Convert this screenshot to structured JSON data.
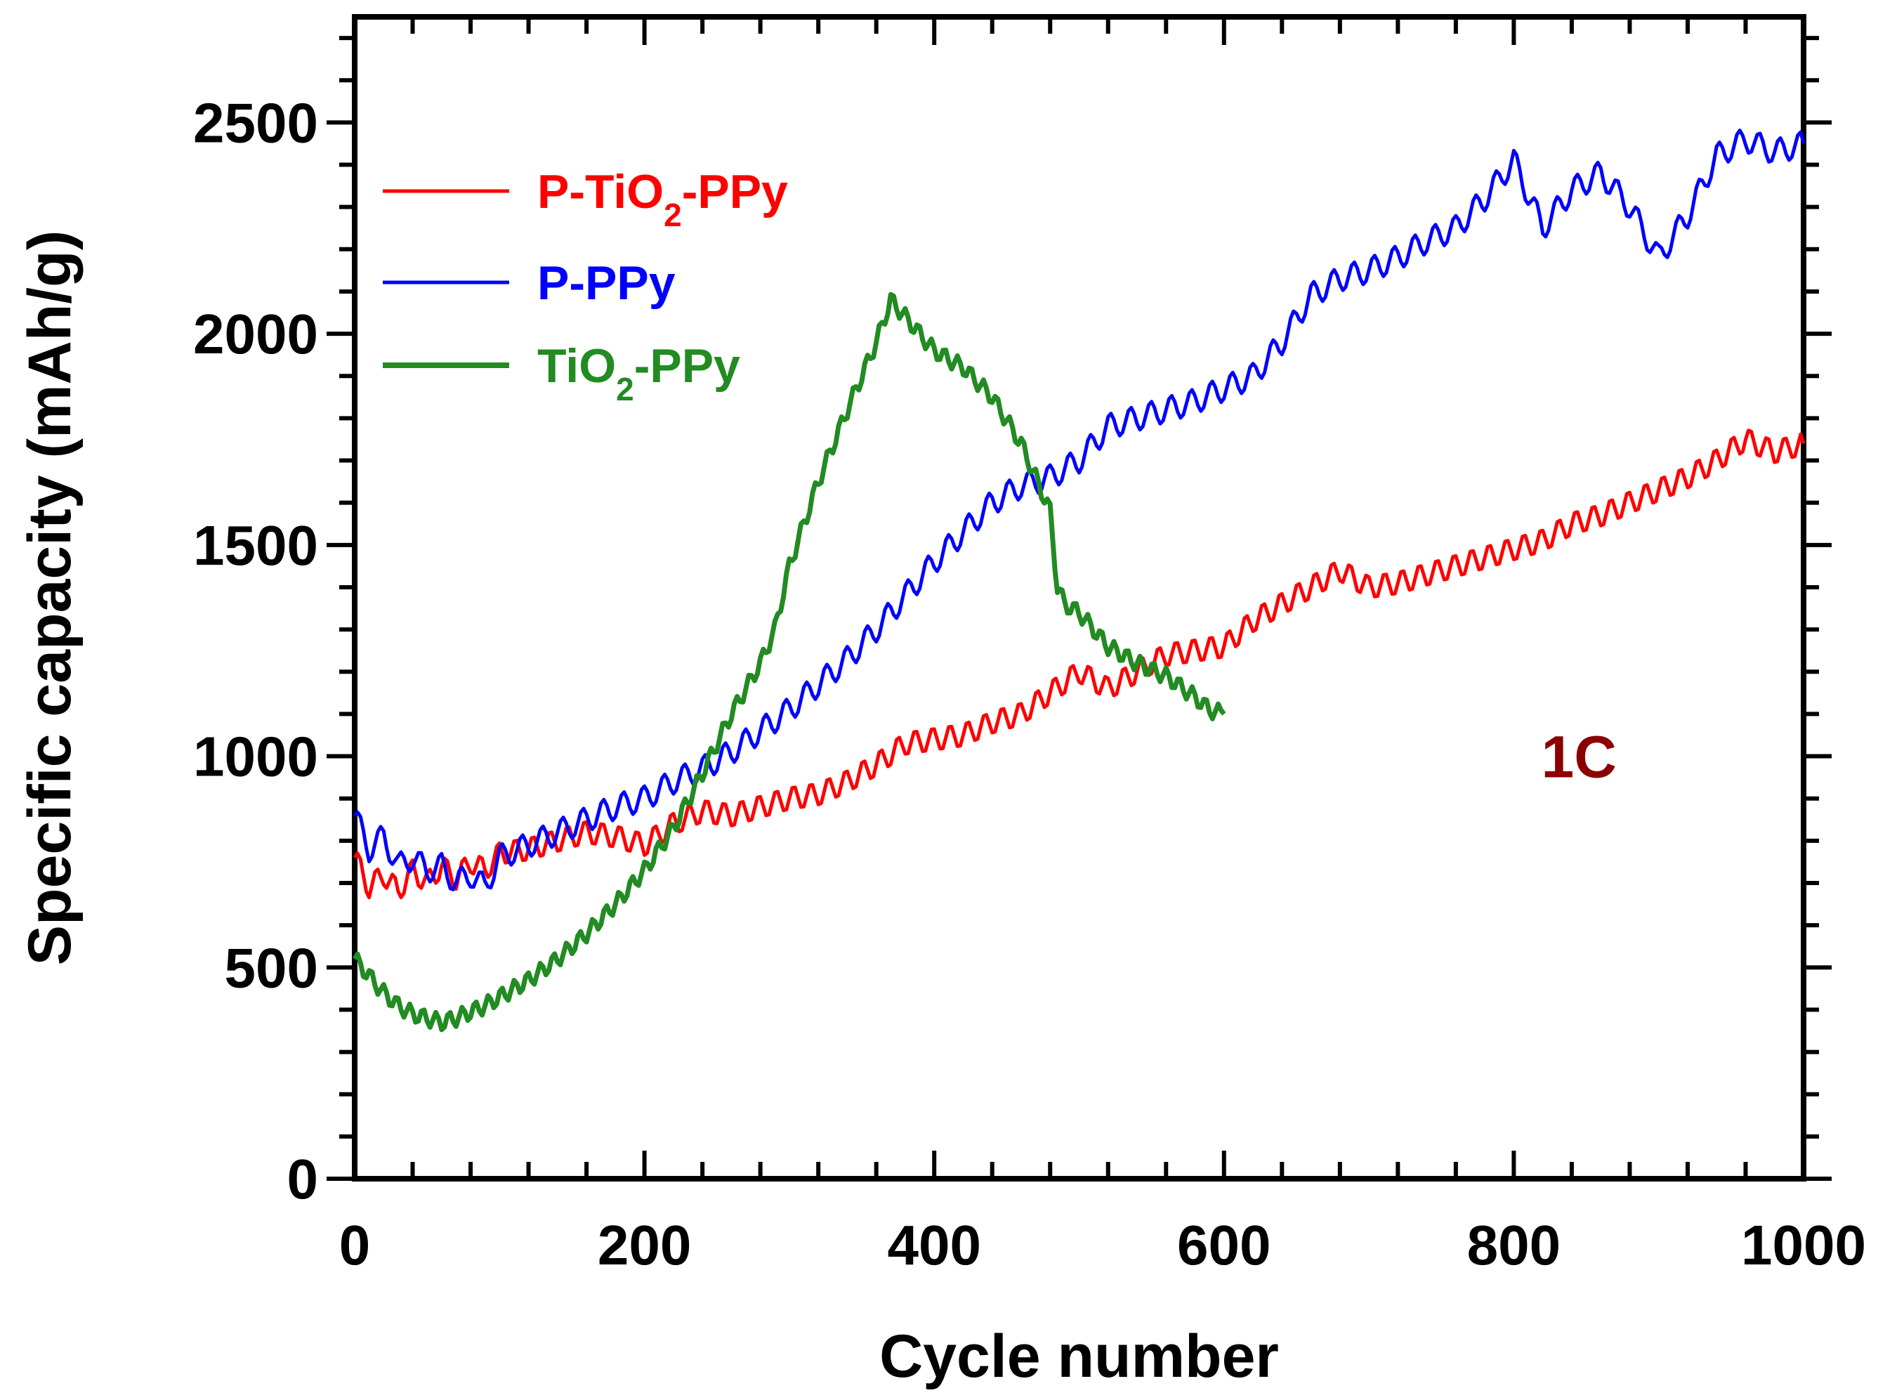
{
  "chart_data": {
    "type": "line",
    "title": "",
    "xlabel": "Cycle number",
    "ylabel": "Specific capacity (mAh/g)",
    "xlim": [
      0,
      1000
    ],
    "ylim": [
      0,
      2750
    ],
    "xticks": [
      0,
      200,
      400,
      600,
      800,
      1000
    ],
    "xtick_labels": [
      "0",
      "200",
      "400",
      "600",
      "800",
      "1000"
    ],
    "yticks": [
      0,
      500,
      1000,
      1500,
      2000,
      2500
    ],
    "ytick_labels": [
      "0",
      "500",
      "1000",
      "1500",
      "2000",
      "2500"
    ],
    "grid": false,
    "legend_position": "top-left",
    "annotation": {
      "text": "1C",
      "color": "#8b0000"
    },
    "series": [
      {
        "name": "P-TiO2-PPy",
        "legend_main": "P-TiO",
        "legend_sub": "2",
        "legend_tail": "-PPy",
        "color": "#ff0000",
        "x": [
          0,
          10,
          20,
          30,
          40,
          50,
          60,
          70,
          80,
          90,
          100,
          120,
          140,
          160,
          180,
          200,
          220,
          240,
          260,
          280,
          300,
          320,
          340,
          360,
          380,
          400,
          420,
          440,
          460,
          480,
          500,
          520,
          540,
          560,
          580,
          600,
          620,
          640,
          660,
          680,
          700,
          720,
          740,
          760,
          780,
          800,
          820,
          840,
          860,
          880,
          900,
          920,
          940,
          960,
          980,
          1000
        ],
        "y": [
          760,
          690,
          720,
          680,
          730,
          700,
          740,
          710,
          750,
          730,
          770,
          780,
          800,
          820,
          810,
          790,
          840,
          870,
          860,
          880,
          900,
          910,
          940,
          980,
          1030,
          1040,
          1050,
          1080,
          1100,
          1150,
          1200,
          1160,
          1200,
          1240,
          1250,
          1260,
          1320,
          1360,
          1400,
          1440,
          1400,
          1410,
          1430,
          1450,
          1470,
          1490,
          1510,
          1550,
          1570,
          1600,
          1630,
          1660,
          1700,
          1750,
          1720,
          1740
        ]
      },
      {
        "name": "P-PPy",
        "legend_main": "P-PPy",
        "legend_sub": "",
        "legend_tail": "",
        "color": "#0000ff",
        "x": [
          0,
          10,
          20,
          30,
          40,
          50,
          60,
          70,
          80,
          90,
          100,
          120,
          140,
          160,
          180,
          200,
          220,
          240,
          260,
          280,
          300,
          320,
          340,
          360,
          380,
          400,
          420,
          440,
          460,
          480,
          500,
          520,
          540,
          560,
          580,
          600,
          620,
          640,
          660,
          680,
          700,
          720,
          740,
          760,
          780,
          800,
          820,
          840,
          860,
          880,
          900,
          920,
          940,
          960,
          980,
          1000
        ],
        "y": [
          860,
          780,
          810,
          740,
          760,
          730,
          740,
          700,
          720,
          690,
          760,
          790,
          820,
          850,
          880,
          900,
          940,
          970,
          1010,
          1060,
          1110,
          1170,
          1230,
          1300,
          1380,
          1460,
          1530,
          1600,
          1640,
          1660,
          1700,
          1780,
          1800,
          1820,
          1840,
          1870,
          1900,
          1980,
          2090,
          2130,
          2150,
          2180,
          2220,
          2250,
          2320,
          2410,
          2250,
          2340,
          2380,
          2300,
          2180,
          2280,
          2420,
          2460,
          2430,
          2450
        ]
      },
      {
        "name": "TiO2-PPy",
        "legend_main": "TiO",
        "legend_sub": "2",
        "legend_tail": "-PPy",
        "color": "#228b22",
        "x": [
          0,
          10,
          20,
          30,
          40,
          50,
          60,
          70,
          80,
          90,
          100,
          120,
          140,
          160,
          180,
          200,
          220,
          240,
          260,
          280,
          290,
          300,
          320,
          340,
          360,
          370,
          380,
          400,
          420,
          440,
          460,
          470,
          480,
          485,
          490,
          500,
          520,
          540,
          560,
          580,
          590,
          600
        ],
        "y": [
          520,
          480,
          440,
          410,
          390,
          380,
          370,
          380,
          395,
          410,
          430,
          470,
          520,
          580,
          650,
          730,
          830,
          960,
          1100,
          1220,
          1300,
          1450,
          1650,
          1820,
          1980,
          2080,
          2040,
          1960,
          1920,
          1850,
          1740,
          1660,
          1580,
          1400,
          1360,
          1340,
          1260,
          1220,
          1190,
          1140,
          1110,
          1100
        ]
      }
    ]
  }
}
